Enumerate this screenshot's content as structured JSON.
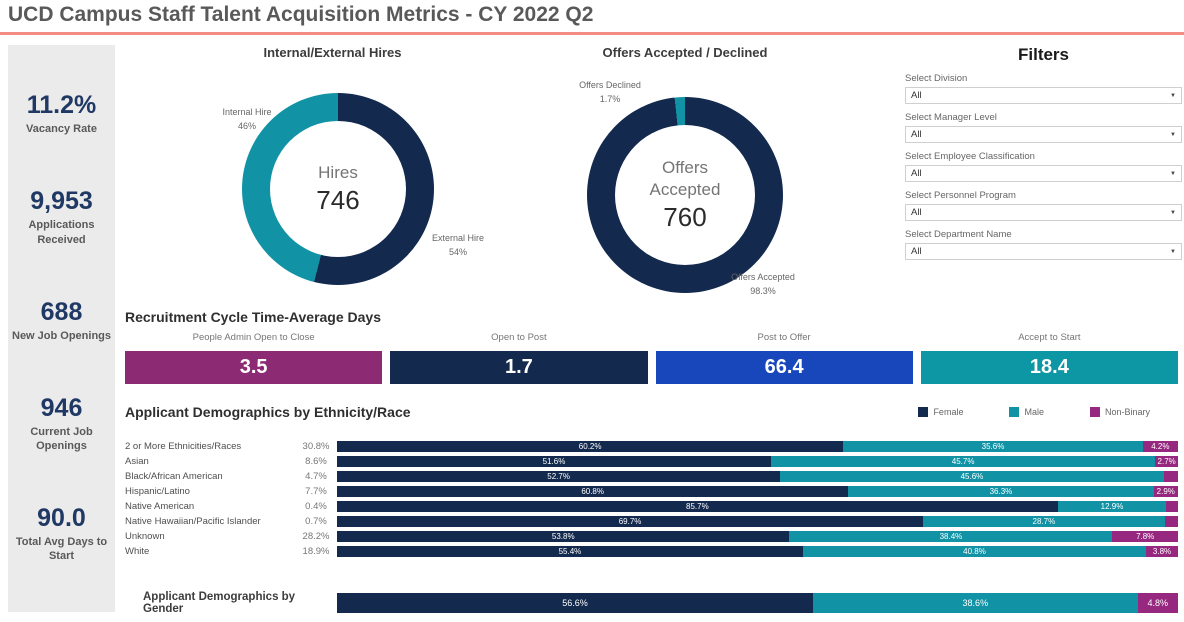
{
  "title": "UCD Campus Staff Talent Acquisition Metrics - CY 2022 Q2",
  "colors": {
    "accent_line": "#f28b82",
    "sidebar_bg": "#ebebeb",
    "kpi_value": "#1f3864",
    "kpi_label": "#595959",
    "female": "#13294e",
    "male": "#1193a5",
    "nonbinary": "#96297f"
  },
  "kpis": [
    {
      "value": "11.2%",
      "label": "Vacancy Rate"
    },
    {
      "value": "9,953",
      "label": "Applications Received"
    },
    {
      "value": "688",
      "label": "New Job Openings"
    },
    {
      "value": "946",
      "label": "Current Job Openings"
    },
    {
      "value": "90.0",
      "label": "Total Avg Days to Start"
    }
  ],
  "filters": {
    "title": "Filters",
    "dropdown_arrow": "▼",
    "items": [
      {
        "label": "Select Division",
        "value": "All"
      },
      {
        "label": "Select Manager Level",
        "value": "All"
      },
      {
        "label": "Select Employee Classification",
        "value": "All"
      },
      {
        "label": "Select Personnel Program",
        "value": "All"
      },
      {
        "label": "Select Department Name",
        "value": "All"
      }
    ]
  },
  "chart_data": [
    {
      "id": "internal-external-hires",
      "type": "pie",
      "subtype": "donut",
      "title": "Internal/External Hires",
      "center_label": "Hires",
      "center_value": "746",
      "slices": [
        {
          "label": "External Hire",
          "value": 54,
          "pct_label": "54%",
          "color": "#13294e"
        },
        {
          "label": "Internal Hire",
          "value": 46,
          "pct_label": "46%",
          "color": "#1193a5"
        }
      ]
    },
    {
      "id": "offers-accepted-declined",
      "type": "pie",
      "subtype": "donut",
      "title": "Offers Accepted / Declined",
      "center_label": "Offers Accepted",
      "center_value": "760",
      "slices": [
        {
          "label": "Offers Accepted",
          "value": 98.3,
          "pct_label": "98.3%",
          "color": "#13294e"
        },
        {
          "label": "Offers Declined",
          "value": 1.7,
          "pct_label": "1.7%",
          "color": "#1193a5"
        }
      ]
    },
    {
      "id": "recruitment-cycle-time",
      "type": "bar",
      "title": "Recruitment Cycle Time-Average Days",
      "categories": [
        "People Admin Open to Close",
        "Open to Post",
        "Post to Offer",
        "Accept to Start"
      ],
      "values": [
        3.5,
        1.7,
        66.4,
        18.4
      ],
      "value_labels": [
        "3.5",
        "1.7",
        "66.4",
        "18.4"
      ],
      "colors": [
        "#8c2a74",
        "#13294e",
        "#1847bc",
        "#0d96a3"
      ]
    },
    {
      "id": "demographics-ethnicity",
      "type": "bar",
      "subtype": "stacked-100",
      "title": "Applicant Demographics by Ethnicity/Race",
      "legend_position": "top-right",
      "legend": [
        {
          "name": "Female",
          "color": "#13294e"
        },
        {
          "name": "Male",
          "color": "#1193a5"
        },
        {
          "name": "Non-Binary",
          "color": "#96297f"
        }
      ],
      "categories": [
        "2 or More Ethnicities/Races",
        "Asian",
        "Black/African American",
        "Hispanic/Latino",
        "Native American",
        "Native Hawaiian/Pacific Islander",
        "Unknown",
        "White"
      ],
      "category_shares": [
        "30.8%",
        "8.6%",
        "4.7%",
        "7.7%",
        "0.4%",
        "0.7%",
        "28.2%",
        "18.9%"
      ],
      "series": [
        {
          "name": "Female",
          "color": "#13294e",
          "values": [
            60.2,
            51.6,
            52.7,
            60.8,
            85.7,
            69.7,
            53.8,
            55.4
          ],
          "labels": [
            "60.2%",
            "51.6%",
            "52.7%",
            "60.8%",
            "85.7%",
            "69.7%",
            "53.8%",
            "55.4%"
          ]
        },
        {
          "name": "Male",
          "color": "#1193a5",
          "values": [
            35.6,
            45.7,
            45.6,
            36.3,
            12.9,
            28.7,
            38.4,
            40.8
          ],
          "labels": [
            "35.6%",
            "45.7%",
            "45.6%",
            "36.3%",
            "12.9%",
            "28.7%",
            "38.4%",
            "40.8%"
          ]
        },
        {
          "name": "Non-Binary",
          "color": "#96297f",
          "values": [
            4.2,
            2.7,
            1.7,
            2.9,
            1.4,
            1.6,
            7.8,
            3.8
          ],
          "labels": [
            "4.2%",
            "2.7%",
            "",
            "2.9%",
            "",
            "",
            "7.8%",
            "3.8%"
          ]
        }
      ]
    },
    {
      "id": "demographics-gender",
      "type": "bar",
      "subtype": "stacked-100",
      "title": "Applicant Demographics by  Gender",
      "series": [
        {
          "name": "Female",
          "color": "#13294e",
          "values": [
            56.6
          ],
          "labels": [
            "56.6%"
          ]
        },
        {
          "name": "Male",
          "color": "#1193a5",
          "values": [
            38.6
          ],
          "labels": [
            "38.6%"
          ]
        },
        {
          "name": "Non-Binary",
          "color": "#96297f",
          "values": [
            4.8
          ],
          "labels": [
            "4.8%"
          ]
        }
      ]
    }
  ]
}
